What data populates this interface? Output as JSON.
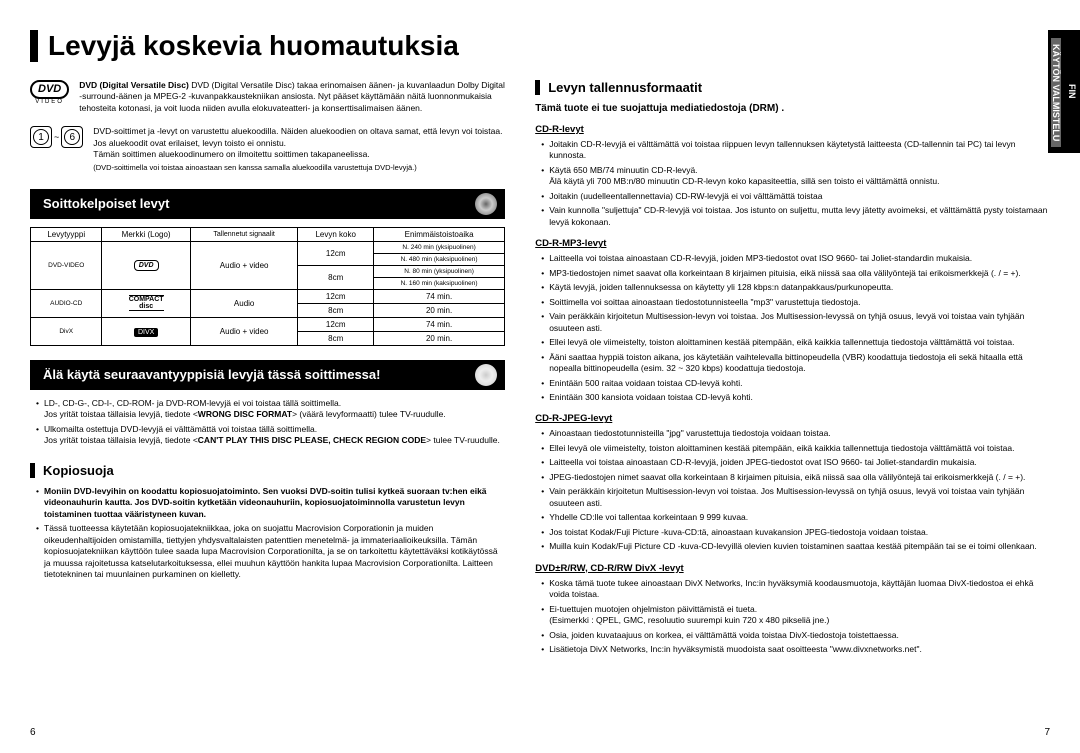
{
  "page": {
    "title": "Levyjä koskevia huomautuksia",
    "lang_tab": "FIN",
    "side_section": "KÄYTÖN VALMISTELU",
    "page_num_left": "6",
    "page_num_right": "7"
  },
  "dvd_intro": {
    "logo": "DVD",
    "logo_sub": "VIDEO",
    "text": "DVD (Digital Versatile Disc) takaa erinomaisen äänen- ja kuvanlaadun Dolby Digital -surround-äänen ja MPEG-2 -kuvanpakkaustekniikan ansiosta. Nyt pääset käyttämään näitä luonnonmukaisia tehosteita kotonasi, ja voit luoda niiden avulla elokuvateatteri- ja konserttisalimaisen äänen."
  },
  "region": {
    "c1": "1",
    "c2": "6",
    "tilde": "~",
    "line1": "DVD-soittimet ja -levyt on varustettu aluekoodilla. Näiden aluekoodien on oltava samat, että levyn voi toistaa. Jos aluekoodit ovat erilaiset, levyn toisto ei onnistu.",
    "line2": "Tämän soittimen aluekoodinumero on ilmoitettu soittimen takapaneelissa.",
    "small": "(DVD-soittimella voi toistaa ainoastaan sen kanssa samalla aluekoodilla varustettuja DVD-levyjä.)"
  },
  "sec_playable": {
    "title": "Soittokelpoiset levyt"
  },
  "table": {
    "h1": "Levytyyppi",
    "h2": "Merkki (Logo)",
    "h3": "Tallennetut signaalit",
    "h4": "Levyn koko",
    "h5": "Enimmäistoistoaika",
    "r1c1": "DVD-VIDEO",
    "r1c3": "Audio + video",
    "r1_12": "12cm",
    "r1_12t": "N. 240 min (yksipuolinen)",
    "r1_12t2": "N. 480 min (kaksipuolinen)",
    "r1_8": "8cm",
    "r1_8t": "N. 80 min (yksipuolinen)",
    "r1_8t2": "N. 160 min (kaksipuolinen)",
    "r2c1": "AUDIO-CD",
    "r2c3": "Audio",
    "r2_12": "12cm",
    "r2_12t": "74 min.",
    "r2_8": "8cm",
    "r2_8t": "20 min.",
    "r3c1": "DivX",
    "r3c3": "Audio + video",
    "r3_12": "12cm",
    "r3_12t": "74 min.",
    "r3_8": "8cm",
    "r3_8t": "20 min."
  },
  "sec_dont": {
    "title": "Älä käytä seuraavantyyppisiä levyjä tässä soittimessa!",
    "b1": "LD-, CD-G-, CD-I-, CD-ROM- ja DVD-ROM-levyjä ei voi toistaa tällä soittimella.",
    "b1sub": "Jos yrität toistaa tällaisia levyjä, tiedote <WRONG DISC FORMAT> (väärä levyformaatti) tulee TV-ruudulle.",
    "b2": "Ulkomailta ostettuja DVD-levyjä ei välttämättä voi toistaa tällä soittimella.",
    "b2sub": "Jos yrität toistaa tällaisia levyjä, tiedote <CAN'T PLAY THIS DISC PLEASE, CHECK REGION CODE> tulee TV-ruudulle."
  },
  "sec_copy": {
    "title": "Kopiosuoja",
    "b1": "Moniin DVD-levyihin on koodattu kopiosuojatoiminto. Sen vuoksi DVD-soitin tulisi kytkeä suoraan tv:hen eikä videonauhurin kautta. Jos DVD-soitin kytketään videonauhuriin, kopiosuojatoiminnolla varustetun levyn toistaminen tuottaa vääristyneen kuvan.",
    "b2": "Tässä tuotteessa käytetään kopiosuojatekniikkaa, joka on suojattu Macrovision Corporationin ja muiden oikeudenhaltijoiden omistamilla, tiettyjen yhdysvaltalaisten patenttien menetelmä- ja immateriaalioikeuksilla. Tämän kopiosuojatekniikan käyttöön tulee saada lupa Macrovision Corporationilta, ja se on tarkoitettu käytettäväksi kotikäytössä ja muussa rajoitetussa katselutarkoituksessa, ellei muuhun käyttöön hankita lupaa Macrovision Corporationilta. Laitteen tietotekninen tai muunlainen purkaminen on kielletty."
  },
  "sec_storage": {
    "title": "Levyn tallennusformaatit",
    "drm": "Tämä tuote ei tue suojattuja mediatiedostoja (DRM) ."
  },
  "cdr": {
    "h": "CD-R-levyt",
    "b1": "Joitakin CD-R-levyjä ei välttämättä voi toistaa riippuen levyn tallennuksen käytetystä laitteesta (CD-tallennin tai PC) tai levyn kunnosta.",
    "b2": "Käytä 650 MB/74 minuutin CD-R-levyä.",
    "b2sub": "Älä käytä yli 700 MB:n/80 minuutin CD-R-levyn koko kapasiteettia, sillä sen toisto ei välttämättä onnistu.",
    "b3": "Joitakin (uudelleentallennettavia) CD-RW-levyjä ei voi välttämättä toistaa",
    "b4": "Vain kunnolla \"suljettuja\" CD-R-levyjä voi toistaa. Jos istunto on suljettu, mutta levy jätetty avoimeksi, et välttämättä pysty toistamaan levyä kokonaan."
  },
  "cdrmp3": {
    "h": "CD-R-MP3-levyt",
    "b1": "Laitteella voi toistaa ainoastaan CD-R-levyjä, joiden MP3-tiedostot ovat ISO 9660- tai Joliet-standardin mukaisia.",
    "b2": "MP3-tiedostojen nimet saavat olla korkeintaan 8 kirjaimen pituisia, eikä niissä saa olla välilyöntejä tai erikoismerkkejä (. / = +).",
    "b3": "Käytä levyjä, joiden tallennuksessa on käytetty yli 128 kbps:n datanpakkaus/purkunopeutta.",
    "b4": "Soittimella voi soittaa ainoastaan tiedostotunnisteella \"mp3\" varustettuja tiedostoja.",
    "b5": "Vain peräkkäin kirjoitetun Multisession-levyn voi toistaa. Jos Multisession-levyssä on tyhjä osuus, levyä voi toistaa vain tyhjään osuuteen asti.",
    "b6": "Ellei levyä ole viimeistelty, toiston aloittaminen kestää pitempään, eikä kaikkia tallennettuja tiedostoja välttämättä voi toistaa.",
    "b7": "Ääni saattaa hyppiä toiston aikana, jos käytetään vaihtelevalla bittinopeudella (VBR) koodattuja tiedostoja eli sekä hitaalla että nopealla bittinopeudella (esim. 32 ~ 320 kbps) koodattuja tiedostoja.",
    "b8": "Enintään 500 raitaa voidaan toistaa CD-levyä kohti.",
    "b9": "Enintään 300 kansiota voidaan toistaa CD-levyä kohti."
  },
  "cdrjpeg": {
    "h": "CD-R-JPEG-levyt",
    "b1": "Ainoastaan tiedostotunnisteilla \"jpg\" varustettuja tiedostoja voidaan toistaa.",
    "b2": "Ellei levyä ole viimeistelty, toiston aloittaminen kestää pitempään, eikä kaikkia tallennettuja tiedostoja välttämättä voi toistaa.",
    "b3": "Laitteella voi toistaa ainoastaan CD-R-levyjä, joiden JPEG-tiedostot ovat ISO 9660- tai Joliet-standardin mukaisia.",
    "b4": "JPEG-tiedostojen nimet saavat olla korkeintaan 8 kirjaimen pituisia, eikä niissä saa olla välilyöntejä tai erikoismerkkejä (. / = +).",
    "b5": "Vain peräkkäin kirjoitetun Multisession-levyn voi toistaa. Jos Multisession-levyssä on tyhjä osuus, levyä voi toistaa vain tyhjään osuuteen asti.",
    "b6": "Yhdelle CD:lle voi tallentaa korkeintaan 9 999 kuvaa.",
    "b7": "Jos toistat Kodak/Fuji Picture -kuva-CD:tä, ainoastaan kuvakansion JPEG-tiedostoja voidaan toistaa.",
    "b8": "Muilla kuin Kodak/Fuji Picture CD -kuva-CD-levyillä olevien kuvien toistaminen saattaa kestää pitempään tai se ei toimi ollenkaan."
  },
  "dvdrrw": {
    "h": "DVD±R/RW, CD-R/RW DivX -levyt",
    "b1": "Koska tämä tuote tukee ainoastaan DivX Networks, Inc:in hyväksymiä koodausmuotoja, käyttäjän luomaa DivX-tiedostoa ei ehkä voida toistaa.",
    "b2": "Ei-tuettujen muotojen ohjelmiston päivittämistä ei tueta.",
    "b2sub": "(Esimerkki : QPEL, GMC, resoluutio suurempi kuin 720 x 480 pikseliä jne.)",
    "b3": "Osia, joiden kuvataajuus on korkea, ei välttämättä voida toistaa DivX-tiedostoja toistettaessa.",
    "b4": "Lisätietoja DivX Networks, Inc:in hyväksymistä muodoista saat osoitteesta \"www.divxnetworks.net\"."
  }
}
